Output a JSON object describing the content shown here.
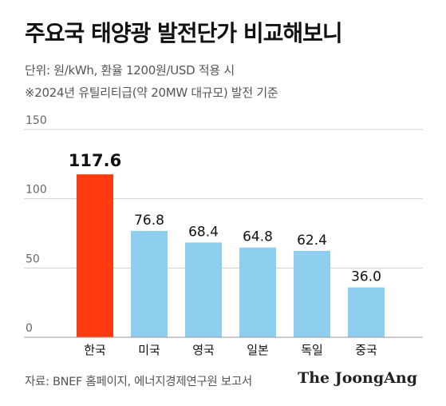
{
  "header": {
    "title": "주요국 태양광 발전단가 비교해보니",
    "subtitle1": "단위: 원/kWh, 환율 1200원/USD 적용 시",
    "subtitle2": "※2024년 유틸리티급(약 20MW 대규모) 발전 기준"
  },
  "footer": {
    "source": "자료: BNEF 홈페이지, 에너지경제연구원 보고서",
    "brand": "The JoongAng"
  },
  "colors": {
    "highlight": "#ff3b0f",
    "bar": "#8ecff0",
    "gridline": "#d0d0d0"
  },
  "chart_data": {
    "type": "bar",
    "categories": [
      "한국",
      "미국",
      "영국",
      "일본",
      "독일",
      "중국"
    ],
    "values": [
      117.6,
      76.8,
      68.4,
      64.8,
      62.4,
      36.0
    ],
    "value_labels": [
      "117.6",
      "76.8",
      "68.4",
      "64.8",
      "62.4",
      "36.0"
    ],
    "highlight_index": 0,
    "yticks": [
      "0",
      "50",
      "100",
      "150"
    ],
    "ylim": [
      0,
      150
    ],
    "grid": false
  }
}
